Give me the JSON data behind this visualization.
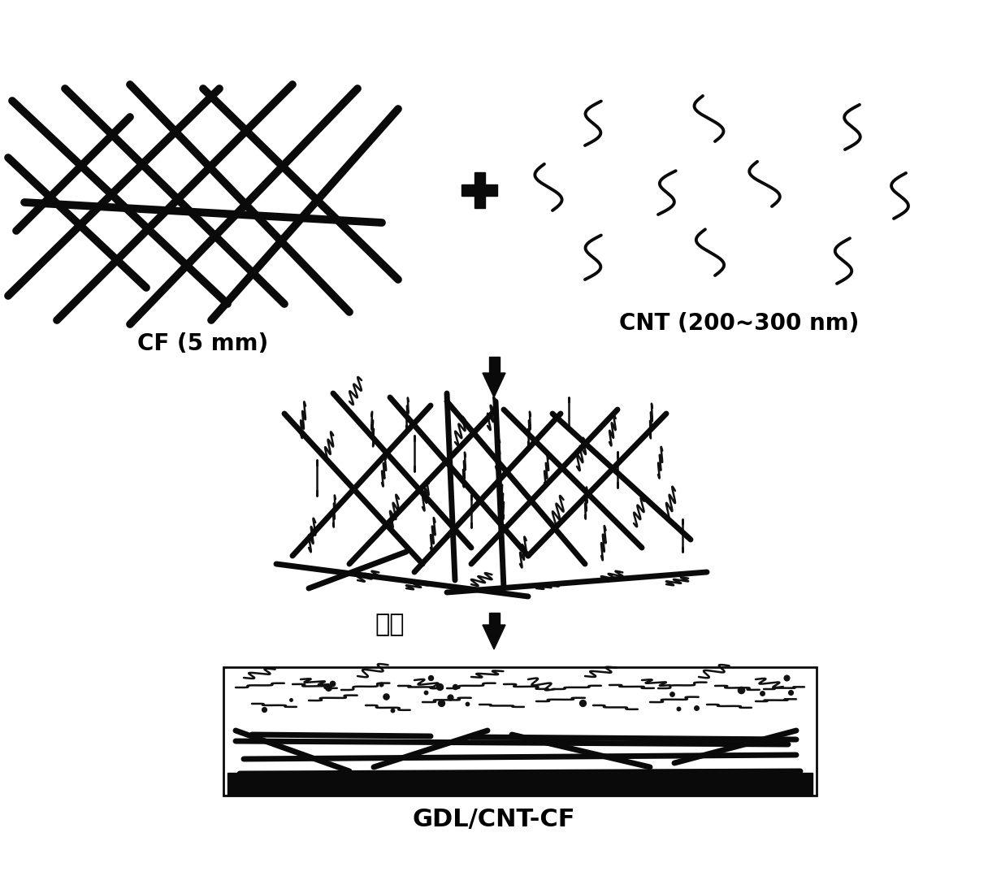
{
  "background_color": "#ffffff",
  "cf_label": "CF (5 mm)",
  "cnt_label": "CNT (200~300 nm)",
  "gdl_label": "GDL/CNT-CF",
  "filter_label": "抽滤",
  "label_fontsize": 20,
  "arrow_color": "#000000",
  "line_color": "#000000",
  "lw_cf": 7,
  "lw_cnt": 2.5,
  "lw_cluster_cf": 5,
  "lw_cluster_cnt": 1.8
}
